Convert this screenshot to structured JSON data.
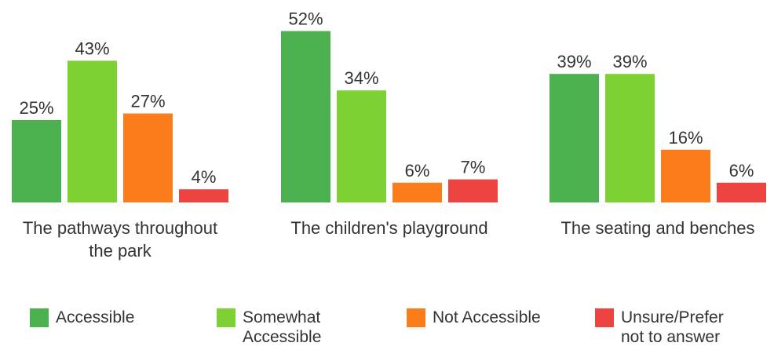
{
  "chart_data": {
    "type": "bar",
    "title": "",
    "xlabel": "",
    "ylabel": "",
    "ylim": [
      0,
      52
    ],
    "grid": false,
    "legend_position": "bottom",
    "categories": [
      "The pathways throughout\nthe park",
      "The children's playground",
      "The seating and benches"
    ],
    "series": [
      {
        "name": "Accessible",
        "color": "#4caf50",
        "values": [
          25,
          52,
          39
        ],
        "labels": [
          "25%",
          "52%",
          "39%"
        ]
      },
      {
        "name": "Somewhat\nAccessible",
        "color": "#7ed132",
        "values": [
          43,
          34,
          39
        ],
        "labels": [
          "43%",
          "34%",
          "39%"
        ]
      },
      {
        "name": "Not Accessible",
        "color": "#fb7c1a",
        "values": [
          27,
          6,
          16
        ],
        "labels": [
          "27%",
          "6%",
          "16%"
        ]
      },
      {
        "name": "Unsure/Prefer\nnot to answer",
        "color": "#ee4441",
        "values": [
          4,
          7,
          6
        ],
        "labels": [
          "4%",
          "7%",
          "6%"
        ]
      }
    ]
  }
}
